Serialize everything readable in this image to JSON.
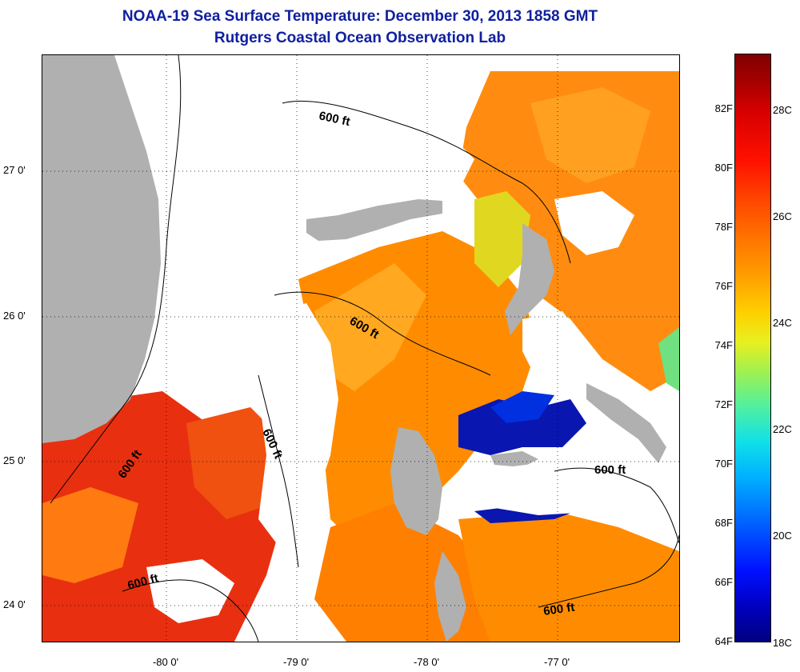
{
  "title": {
    "line1": "NOAA-19 Sea Surface Temperature:  December 30, 2013 1858 GMT",
    "line2": "Rutgers Coastal Ocean Observation Lab"
  },
  "map": {
    "lat_labels": [
      "27 0'",
      "26 0'",
      "25 0'",
      "24 0'"
    ],
    "lon_labels": [
      "-80 0'",
      "-79 0'",
      "-78 0'",
      "-77 0'"
    ],
    "contour_labels": [
      "600 ft",
      "600 ft",
      "600 ft",
      "600 ft",
      "600 ft",
      "600 ft",
      "600 ft"
    ],
    "colors": {
      "land": "#b0b0b0",
      "cloud": "#ffffff",
      "warm": "#ff8c00",
      "hot": "#e82000",
      "mid": "#ffb000",
      "cool": "#e0e020",
      "cold": "#0010a0"
    }
  },
  "colorbar": {
    "fahrenheit_labels": [
      "82F",
      "80F",
      "78F",
      "76F",
      "74F",
      "72F",
      "70F",
      "68F",
      "66F",
      "64F"
    ],
    "celsius_labels": [
      "28C",
      "26C",
      "24C",
      "22C",
      "20C",
      "18C"
    ]
  }
}
